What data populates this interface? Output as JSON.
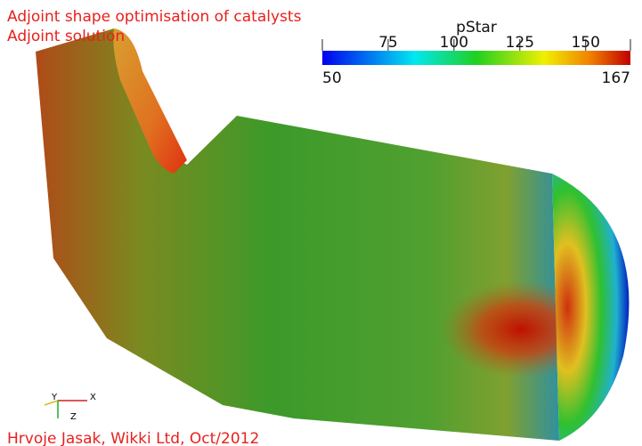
{
  "header": {
    "title": "Adjoint shape optimisation of catalysts",
    "subtitle": "Adjoint solution"
  },
  "colorbar": {
    "title": "pStar",
    "range": [
      50,
      167
    ],
    "ticks": [
      75,
      100,
      125,
      150
    ]
  },
  "axes": {
    "x": "X",
    "y": "Y",
    "z": "Z"
  },
  "footer": {
    "credit": "Hrvoje Jasak, Wikki Ltd, Oct/2012"
  }
}
